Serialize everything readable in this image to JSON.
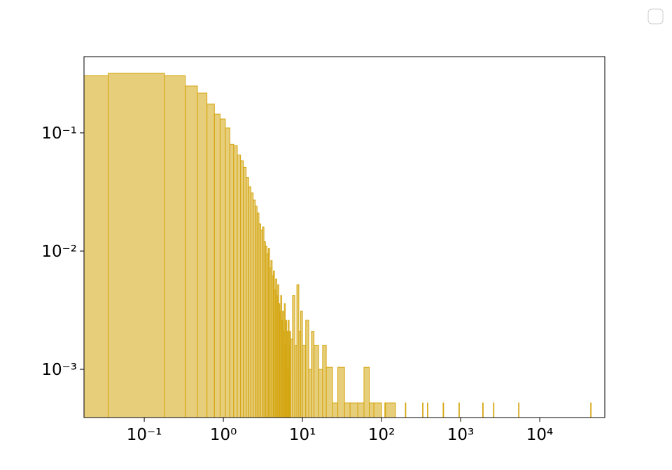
{
  "chart_data": {
    "type": "histogram",
    "color": "#d4a50f",
    "xscale": "log",
    "yscale": "log",
    "bins": [
      0.0173,
      0.035,
      0.18,
      0.33,
      0.47,
      0.62,
      0.77,
      0.91,
      1.06,
      1.21,
      1.35,
      1.5,
      1.65,
      1.79,
      1.94,
      2.09,
      2.23,
      2.38,
      2.53,
      2.67,
      2.82,
      2.97,
      3.11,
      3.26,
      3.41,
      3.55,
      3.7,
      3.85,
      3.99,
      4.14,
      4.29,
      4.43,
      4.58,
      4.73,
      4.87,
      5.02,
      5.17,
      5.31,
      5.46,
      5.61,
      5.75,
      5.9,
      6.05,
      6.19,
      6.34,
      6.49,
      6.63,
      6.78,
      6.93,
      7.07,
      7.5,
      8,
      8.5,
      9,
      9.5,
      10,
      11,
      12,
      13,
      14,
      16,
      18,
      20,
      24,
      28,
      34,
      40,
      50,
      60,
      70,
      80,
      100,
      110,
      112,
      150,
      200,
      203,
      330,
      335,
      380,
      385,
      600,
      610,
      950,
      965,
      1900,
      1930,
      2600,
      2640,
      5400,
      5480,
      44000,
      44700
    ],
    "values": [
      0.305,
      0.32,
      0.305,
      0.249,
      0.217,
      0.175,
      0.144,
      0.131,
      0.11,
      0.08,
      0.078,
      0.065,
      0.058,
      0.051,
      0.042,
      0.035,
      0.031,
      0.027,
      0.024,
      0.021,
      0.017,
      0.015,
      0.016,
      0.012,
      0.011,
      0.0095,
      0.0105,
      0.0072,
      0.0083,
      0.0062,
      0.0068,
      0.0047,
      0.0058,
      0.0042,
      0.0052,
      0.0036,
      0.0031,
      0.0042,
      0.0026,
      0.0031,
      0.0021,
      0.0036,
      0.0016,
      0.0026,
      0.0021,
      0.001,
      0.0026,
      0.0016,
      0.0021,
      0.0018,
      0.0042,
      0.0016,
      0.0052,
      0.0021,
      0.0031,
      0.0016,
      0.0026,
      0.001,
      0.0021,
      0.0016,
      0.001,
      0.0016,
      0.00104,
      0.00052,
      0.00104,
      0.00052,
      0.00052,
      0.00052,
      0.00104,
      0.00052,
      0.00052,
      0,
      0.00052,
      0.00052,
      0,
      0.00052,
      0,
      0.00052,
      0,
      0.00052,
      0,
      0.00052,
      0,
      0.00052,
      0,
      0.00052,
      0,
      0.00052,
      0,
      0.00052,
      0,
      0.00052
    ],
    "xlim": [
      0.0173,
      66500
    ],
    "ylim": [
      0.000391,
      0.441
    ],
    "xticks": [
      {
        "value": 0.1,
        "label": "10⁻¹"
      },
      {
        "value": 1,
        "label": "10⁰"
      },
      {
        "value": 10,
        "label": "10¹"
      },
      {
        "value": 100,
        "label": "10²"
      },
      {
        "value": 1000,
        "label": "10³"
      },
      {
        "value": 10000,
        "label": "10⁴"
      }
    ],
    "yticks": [
      {
        "value": 0.1,
        "label": "10⁻¹"
      },
      {
        "value": 0.01,
        "label": "10⁻²"
      },
      {
        "value": 0.001,
        "label": "10⁻³"
      }
    ]
  }
}
